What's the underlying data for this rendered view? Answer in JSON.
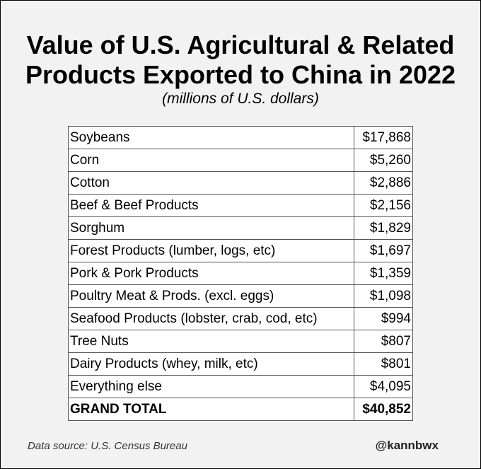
{
  "title_line1": "Value of U.S. Agricultural & Related",
  "title_line2": "Products Exported to China in 2022",
  "subtitle": "(millions of U.S. dollars)",
  "rows": [
    {
      "item": "Soybeans",
      "value": "$17,868"
    },
    {
      "item": "Corn",
      "value": "$5,260"
    },
    {
      "item": "Cotton",
      "value": "$2,886"
    },
    {
      "item": "Beef & Beef Products",
      "value": "$2,156"
    },
    {
      "item": "Sorghum",
      "value": "$1,829"
    },
    {
      "item": "Forest Products (lumber, logs, etc)",
      "value": "$1,697"
    },
    {
      "item": "Pork & Pork Products",
      "value": "$1,359"
    },
    {
      "item": "Poultry Meat & Prods. (excl. eggs)",
      "value": "$1,098"
    },
    {
      "item": "Seafood Products (lobster, crab, cod, etc)",
      "value": "$994"
    },
    {
      "item": "Tree Nuts",
      "value": "$807"
    },
    {
      "item": "Dairy Products (whey, milk, etc)",
      "value": "$801"
    },
    {
      "item": "Everything else",
      "value": "$4,095"
    }
  ],
  "total": {
    "item": "GRAND TOTAL",
    "value": "$40,852"
  },
  "footer": {
    "source": "Data source: U.S. Census Bureau",
    "handle": "@kannbwx"
  }
}
